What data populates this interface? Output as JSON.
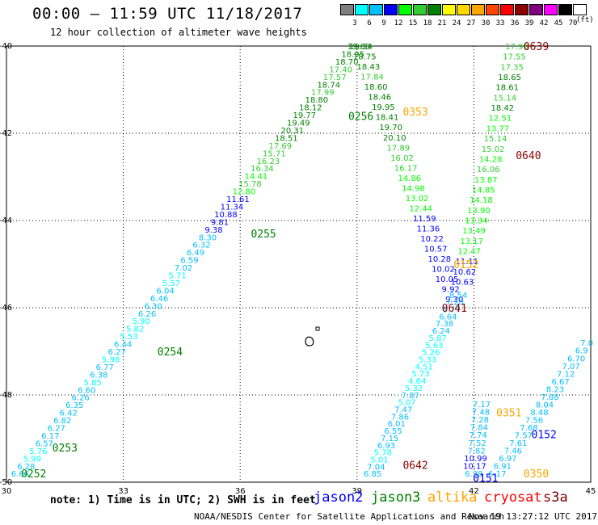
{
  "title": "00:00 – 11:59 UTC 11/18/2017",
  "subtitle": "12 hour collection of altimeter wave heights",
  "scale": {
    "labels": [
      "3",
      "6",
      "9",
      "12",
      "15",
      "18",
      "21",
      "24",
      "27",
      "30",
      "33",
      "36",
      "39",
      "42",
      "45",
      "70"
    ],
    "unit": "(ft)",
    "colors": [
      "#808080",
      "#00ffff",
      "#00bfff",
      "#0000ff",
      "#00ff00",
      "#32cd32",
      "#008000",
      "#ffff00",
      "#ffd700",
      "#ffa500",
      "#ff4500",
      "#ff0000",
      "#8b0000",
      "#800080",
      "#ff00ff",
      "#000000",
      "#ffffff"
    ]
  },
  "axes": {
    "lon_labels": [
      "30",
      "33",
      "36",
      "39",
      "42",
      "45"
    ],
    "lat_labels": [
      "-40",
      "-42",
      "-44",
      "-46",
      "-48",
      "-50"
    ]
  },
  "note": "note: 1) Time is in UTC; 2) SWH is in feet",
  "legend": [
    {
      "name": "jason2",
      "color": "#0000ff"
    },
    {
      "name": "jason3",
      "color": "#008000"
    },
    {
      "name": "altika",
      "color": "#ffa500"
    },
    {
      "name": "cryosat",
      "color": "#ff0000"
    },
    {
      "name": "s3a",
      "color": "#8b0000"
    }
  ],
  "credit": "NOAA/NESDIS Center for Satellite Applications and Research",
  "timestamp": "Nov 19 13:27:12 UTC 2017",
  "time_labels": [
    {
      "text": "0252",
      "lon": 30.7,
      "lat": -49.8,
      "color": "#008000"
    },
    {
      "text": "0253",
      "lon": 31.5,
      "lat": -49.2,
      "color": "#008000"
    },
    {
      "text": "0254",
      "lon": 34.2,
      "lat": -47.0,
      "color": "#008000"
    },
    {
      "text": "0255",
      "lon": 36.6,
      "lat": -44.3,
      "color": "#008000"
    },
    {
      "text": "0256",
      "lon": 39.1,
      "lat": -41.6,
      "color": "#008000"
    },
    {
      "text": "0353",
      "lon": 40.5,
      "lat": -41.5,
      "color": "#ffa500"
    },
    {
      "text": "0639",
      "lon": 43.6,
      "lat": -40.0,
      "color": "#8b0000"
    },
    {
      "text": "0640",
      "lon": 43.4,
      "lat": -42.5,
      "color": "#8b0000"
    },
    {
      "text": "0641",
      "lon": 41.5,
      "lat": -46.0,
      "color": "#8b0000"
    },
    {
      "text": "0642",
      "lon": 40.5,
      "lat": -49.6,
      "color": "#8b0000"
    },
    {
      "text": "0152",
      "lon": 41.8,
      "lat": -45.0,
      "color": "#ffa500"
    },
    {
      "text": "0351",
      "lon": 42.9,
      "lat": -48.4,
      "color": "#ffa500"
    },
    {
      "text": "0152",
      "lon": 43.8,
      "lat": -48.9,
      "color": "#0000ff"
    },
    {
      "text": "0151",
      "lon": 42.3,
      "lat": -49.9,
      "color": "#0000ff"
    },
    {
      "text": "0350",
      "lon": 43.6,
      "lat": -49.8,
      "color": "#ffa500"
    }
  ],
  "tracks": [
    {
      "name": "jason3-pass-0252",
      "start": {
        "lon": 30.35,
        "lat": -49.8
      },
      "end": {
        "lon": 39.05,
        "lat": -40.0
      },
      "values": [
        "6.64",
        "6.28",
        "5.99",
        "5.76",
        "6.57",
        "6.17",
        "6.27",
        "6.82",
        "6.42",
        "6.35",
        "6.26",
        "6.60",
        "5.85",
        "6.38",
        "6.77",
        "5.98",
        "6.27",
        "6.44",
        "5.53",
        "5.82",
        "5.90",
        "6.26",
        "6.30",
        "6.46",
        "6.04",
        "5.57",
        "5.71",
        "7.02",
        "6.59",
        "6.49",
        "6.32",
        "8.30",
        "9.38",
        "9.81",
        "10.88",
        "11.34",
        "11.61",
        "12.80",
        "15.78",
        "14.41",
        "16.34",
        "16.23",
        "15.71",
        "17.69",
        "18.51",
        "20.31",
        "19.49",
        "19.77",
        "18.12",
        "18.80",
        "17.99",
        "18.74",
        "17.57",
        "17.40",
        "18.70",
        "18.95",
        "19.03"
      ]
    },
    {
      "name": "altika-pass-0353",
      "start": {
        "lon": 39.1,
        "lat": -40.0
      },
      "end": {
        "lon": 41.5,
        "lat": -45.8
      },
      "values": [
        "19.34",
        "18.75",
        "18.43",
        "17.84",
        "18.60",
        "18.46",
        "19.95",
        "18.41",
        "19.70",
        "20.10",
        "17.89",
        "16.02",
        "16.17",
        "14.86",
        "14.98",
        "13.02",
        "12.44",
        "11.59",
        "11.36",
        "10.22",
        "10.57",
        "10.28",
        "10.02",
        "10.05",
        "9.92",
        "9.30"
      ]
    },
    {
      "name": "s3a-pass-0639",
      "start": {
        "lon": 43.1,
        "lat": -40.0
      },
      "end": {
        "lon": 41.7,
        "lat": -45.4
      },
      "values": [
        "17.98",
        "17.55",
        "17.35",
        "18.65",
        "18.61",
        "15.14",
        "18.42",
        "12.51",
        "13.77",
        "15.14",
        "15.02",
        "14.28",
        "16.06",
        "13.87",
        "14.85",
        "14.18",
        "13.90",
        "13.34",
        "13.49",
        "13.17",
        "12.47",
        "11.11",
        "10.62",
        "10.63"
      ]
    },
    {
      "name": "s3a-pass-0641",
      "start": {
        "lon": 41.6,
        "lat": -45.7
      },
      "end": {
        "lon": 39.4,
        "lat": -49.8
      },
      "values": [
        "8.54",
        "7.20",
        "6.77",
        "6.64",
        "7.38",
        "6.24",
        "5.87",
        "5.63",
        "5.26",
        "5.33",
        "4.51",
        "5.73",
        "4.64",
        "5.32",
        "7.87",
        "5.07",
        "7.47",
        "7.86",
        "6.01",
        "6.55",
        "7.15",
        "6.93",
        "5.78",
        "5.01",
        "7.04",
        "6.85"
      ]
    },
    {
      "name": "altika-pass-0351",
      "start": {
        "lon": 42.2,
        "lat": -48.2
      },
      "end": {
        "lon": 42.0,
        "lat": -49.8
      },
      "values": [
        "7.17",
        "7.48",
        "7.28",
        "7.84",
        "7.74",
        "7.52",
        "7.82",
        "10.99",
        "10.17",
        "6.38"
      ]
    },
    {
      "name": "jason2-pass-0152",
      "start": {
        "lon": 44.9,
        "lat": -46.8
      },
      "end": {
        "lon": 42.6,
        "lat": -49.8
      },
      "values": [
        "7.0",
        "6.9",
        "6.70",
        "7.07",
        "7.12",
        "6.67",
        "8.23",
        "7.88",
        "8.04",
        "8.48",
        "7.56",
        "7.68",
        "7.57",
        "7.61",
        "7.46",
        "6.97",
        "6.91",
        "6.17"
      ]
    }
  ]
}
